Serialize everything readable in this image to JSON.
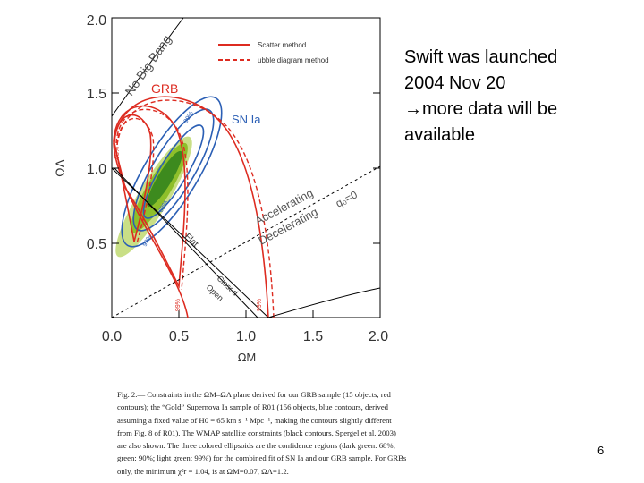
{
  "plot": {
    "y_ticks": [
      "0.5",
      "1.0",
      "1.5",
      "2.0"
    ],
    "x_ticks": [
      "0.0",
      "0.5",
      "1.0",
      "1.5",
      "2.0"
    ],
    "ylabel": "ΩΛ",
    "xlabel": "ΩM",
    "legend": {
      "solid": "Scatter method",
      "dashed": "ubble diagram method"
    },
    "labels": {
      "nobigbang": "No Big Bang",
      "grb": "GRB",
      "sn": "SN Ia",
      "accel": "Accelerating",
      "decel": "Decelerating",
      "q0": "q₀=0",
      "flat": "Flat",
      "closed": "Closed",
      "open": "Open",
      "c68": "68%",
      "c90": "90%",
      "c99": "99%"
    },
    "colors": {
      "grb": "#dd2b20",
      "sn": "#2b5fb5",
      "green_dark": "#3d8a1e",
      "green_mid": "#8ebf2a",
      "green_light": "#c9df86"
    }
  },
  "annotation": {
    "line1": "Swift was launched",
    "line2": "2004 Nov 20",
    "line3": "→more data will be",
    "line4": "available"
  },
  "caption": {
    "line1": "Fig. 2.— Constraints in the ΩM–ΩΛ plane derived for our GRB sample (15 objects, red",
    "line2": "contours); the “Gold” Supernova Ia sample of R01 (156 objects, blue contours, derived",
    "line3": "assuming a fixed value of H0 = 65 km s⁻¹ Mpc⁻¹, making the contours slightly different",
    "line4": "from Fig. 8 of R01). The WMAP satellite constraints (black contours, Spergel et al. 2003)",
    "line5": "are also shown. The three colored ellipsoids are the confidence regions (dark green: 68%;",
    "line6": "green: 90%; light green: 99%) for the combined fit of SN Ia and our GRB sample. For GRBs",
    "line7": "only, the minimum χ²r = 1.04, is at ΩM=0.07, ΩΛ=1.2."
  },
  "page_number": "6"
}
